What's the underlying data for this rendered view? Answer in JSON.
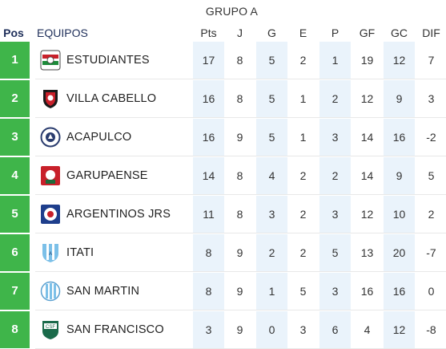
{
  "group_title": "GRUPO A",
  "headers": {
    "pos": "Pos",
    "team": "EQUIPOS",
    "cols": [
      "Pts",
      "J",
      "G",
      "E",
      "P",
      "GF",
      "GC",
      "DIF"
    ]
  },
  "rows": [
    {
      "pos": "1",
      "team": "ESTUDIANTES",
      "logo": "estudiantes-crest-icon",
      "stats": [
        "17",
        "8",
        "5",
        "2",
        "1",
        "19",
        "12",
        "7"
      ]
    },
    {
      "pos": "2",
      "team": "VILLA CABELLO",
      "logo": "villa-cabello-crest-icon",
      "stats": [
        "16",
        "8",
        "5",
        "1",
        "2",
        "12",
        "9",
        "3"
      ]
    },
    {
      "pos": "3",
      "team": "ACAPULCO",
      "logo": "acapulco-crest-icon",
      "stats": [
        "16",
        "9",
        "5",
        "1",
        "3",
        "14",
        "16",
        "-2"
      ]
    },
    {
      "pos": "4",
      "team": "GARUPAENSE",
      "logo": "garupaense-crest-icon",
      "stats": [
        "14",
        "8",
        "4",
        "2",
        "2",
        "14",
        "9",
        "5"
      ]
    },
    {
      "pos": "5",
      "team": "ARGENTINOS JRS",
      "logo": "argentinos-jrs-crest-icon",
      "stats": [
        "11",
        "8",
        "3",
        "2",
        "3",
        "12",
        "10",
        "2"
      ]
    },
    {
      "pos": "6",
      "team": "ITATI",
      "logo": "itati-crest-icon",
      "stats": [
        "8",
        "9",
        "2",
        "2",
        "5",
        "13",
        "20",
        "-7"
      ]
    },
    {
      "pos": "7",
      "team": "SAN MARTIN",
      "logo": "san-martin-crest-icon",
      "stats": [
        "8",
        "9",
        "1",
        "5",
        "3",
        "16",
        "16",
        "0"
      ]
    },
    {
      "pos": "8",
      "team": "SAN FRANCISCO",
      "logo": "san-francisco-crest-icon",
      "stats": [
        "3",
        "9",
        "0",
        "3",
        "6",
        "4",
        "12",
        "-8"
      ]
    }
  ],
  "colors": {
    "position_badge": "#3fb54a",
    "shaded_column": "#eaf3fb",
    "header_text": "#1f2f5a"
  }
}
